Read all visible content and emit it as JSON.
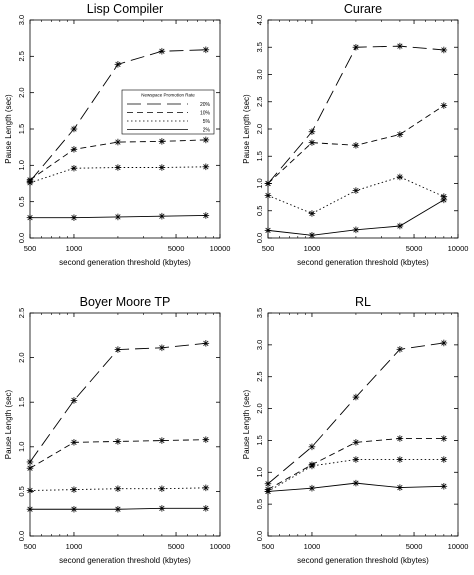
{
  "chart_data": [
    {
      "type": "line",
      "title": "Lisp Compiler",
      "xlabel": "second generation threshold (kbytes)",
      "ylabel": "Pause Length (sec)",
      "xscale": "log",
      "xlim": [
        500,
        10000
      ],
      "xticks": [
        500,
        1000,
        5000,
        10000
      ],
      "xtick_labels": [
        "500",
        "1000",
        "5000",
        "10000"
      ],
      "ylim": [
        0,
        3.0
      ],
      "yticks": [
        0,
        0.5,
        1.0,
        1.5,
        2.0,
        2.5,
        3.0
      ],
      "ytick_labels": [
        "0.0",
        "0.5",
        "1.0",
        "1.5",
        "2.0",
        "2.5",
        "3.0"
      ],
      "x": [
        500,
        1000,
        2000,
        4000,
        8000
      ],
      "legend": {
        "title": "Newspace Promotion Rate",
        "placement": "center-right"
      },
      "series": [
        {
          "name": "20%",
          "style": "long-dash",
          "values": [
            0.78,
            1.5,
            2.39,
            2.57,
            2.59
          ]
        },
        {
          "name": "10%",
          "style": "short-dash",
          "values": [
            0.8,
            1.22,
            1.32,
            1.33,
            1.35
          ]
        },
        {
          "name": "5%",
          "style": "dotted",
          "values": [
            0.76,
            0.96,
            0.97,
            0.97,
            0.98
          ]
        },
        {
          "name": "2%",
          "style": "solid",
          "values": [
            0.28,
            0.28,
            0.29,
            0.3,
            0.31
          ]
        }
      ]
    },
    {
      "type": "line",
      "title": "Curare",
      "xlabel": "second generation threshold (kbytes)",
      "ylabel": "Pause Length (sec)",
      "xscale": "log",
      "xlim": [
        500,
        10000
      ],
      "xticks": [
        500,
        1000,
        5000,
        10000
      ],
      "xtick_labels": [
        "500",
        "1000",
        "5000",
        "10000"
      ],
      "ylim": [
        0,
        4.0
      ],
      "yticks": [
        0,
        0.5,
        1.0,
        1.5,
        2.0,
        2.5,
        3.0,
        3.5,
        4.0
      ],
      "ytick_labels": [
        "0.0",
        "0.5",
        "1.0",
        "1.5",
        "2.0",
        "2.5",
        "3.0",
        "3.5",
        "4.0"
      ],
      "x": [
        500,
        1000,
        2000,
        4000,
        8000
      ],
      "series": [
        {
          "style": "long-dash",
          "values": [
            1.0,
            1.95,
            3.5,
            3.52,
            3.45
          ]
        },
        {
          "style": "short-dash",
          "values": [
            1.0,
            1.75,
            1.7,
            1.9,
            2.43
          ]
        },
        {
          "style": "dotted",
          "values": [
            0.78,
            0.45,
            0.87,
            1.12,
            0.76
          ]
        },
        {
          "style": "solid",
          "values": [
            0.14,
            0.05,
            0.15,
            0.22,
            0.7
          ]
        }
      ]
    },
    {
      "type": "line",
      "title": "Boyer Moore TP",
      "xlabel": "second generation threshold (kbytes)",
      "ylabel": "Pause Length (sec)",
      "xscale": "log",
      "xlim": [
        500,
        10000
      ],
      "xticks": [
        500,
        1000,
        5000,
        10000
      ],
      "xtick_labels": [
        "500",
        "1000",
        "5000",
        "10000"
      ],
      "ylim": [
        0,
        2.5
      ],
      "yticks": [
        0,
        0.5,
        1.0,
        1.5,
        2.0,
        2.5
      ],
      "ytick_labels": [
        "0.0",
        "0.5",
        "1.0",
        "1.5",
        "2.0",
        "2.5"
      ],
      "x": [
        500,
        1000,
        2000,
        4000,
        8000
      ],
      "series": [
        {
          "style": "long-dash",
          "values": [
            0.83,
            1.52,
            2.09,
            2.11,
            2.16
          ]
        },
        {
          "style": "short-dash",
          "values": [
            0.76,
            1.05,
            1.06,
            1.07,
            1.08
          ]
        },
        {
          "style": "dotted",
          "values": [
            0.51,
            0.52,
            0.53,
            0.53,
            0.54
          ]
        },
        {
          "style": "solid",
          "values": [
            0.3,
            0.3,
            0.3,
            0.31,
            0.31
          ]
        }
      ]
    },
    {
      "type": "line",
      "title": "RL",
      "xlabel": "second generation threshold (kbytes)",
      "ylabel": "Pause Length (sec)",
      "xscale": "log",
      "xlim": [
        500,
        10000
      ],
      "xticks": [
        500,
        1000,
        5000,
        10000
      ],
      "xtick_labels": [
        "500",
        "1000",
        "5000",
        "10000"
      ],
      "ylim": [
        0,
        3.5
      ],
      "yticks": [
        0,
        0.5,
        1.0,
        1.5,
        2.0,
        2.5,
        3.0,
        3.5
      ],
      "ytick_labels": [
        "0.0",
        "0.5",
        "1.0",
        "1.5",
        "2.0",
        "2.5",
        "3.0",
        "3.5"
      ],
      "x": [
        500,
        1000,
        2000,
        4000,
        8000
      ],
      "series": [
        {
          "style": "long-dash",
          "values": [
            0.82,
            1.4,
            2.18,
            2.93,
            3.03
          ]
        },
        {
          "style": "short-dash",
          "values": [
            0.73,
            1.12,
            1.47,
            1.53,
            1.53
          ]
        },
        {
          "style": "dotted",
          "values": [
            0.7,
            1.1,
            1.2,
            1.2,
            1.2
          ]
        },
        {
          "style": "solid",
          "values": [
            0.7,
            0.75,
            0.83,
            0.76,
            0.78
          ]
        }
      ]
    }
  ]
}
